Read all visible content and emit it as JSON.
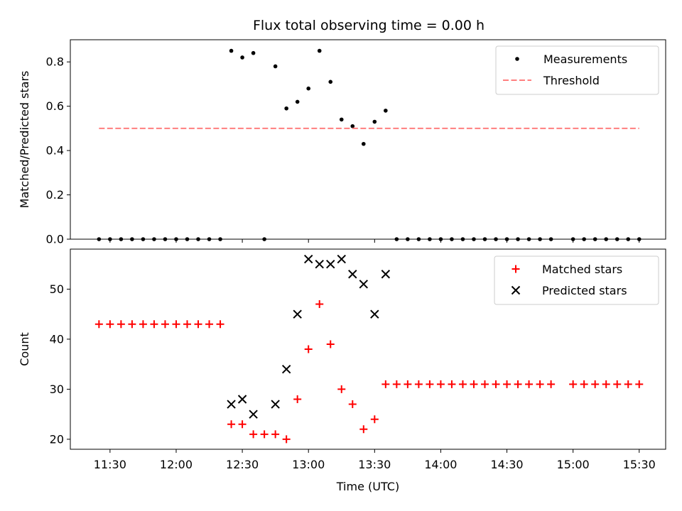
{
  "chart_data": [
    {
      "type": "scatter",
      "title": "Flux total observing time = 0.00 h",
      "xlabel": "",
      "ylabel": "Matched/Predicted stars",
      "ylim": [
        0,
        0.9
      ],
      "xlim": [
        "11:12",
        "15:42"
      ],
      "x_unit": "time (UTC)",
      "y_ticks": [
        0.0,
        0.2,
        0.4,
        0.6,
        0.8
      ],
      "y_tick_labels": [
        "0.0",
        "0.2",
        "0.4",
        "0.6",
        "0.8"
      ],
      "x_tick_labels_shown": false,
      "grid": false,
      "legend_position": "top-right",
      "series": [
        {
          "name": "Measurements",
          "marker": "dot",
          "color": "#000000",
          "points": [
            [
              "11:25",
              0.0
            ],
            [
              "11:30",
              0.0
            ],
            [
              "11:35",
              0.0
            ],
            [
              "11:40",
              0.0
            ],
            [
              "11:45",
              0.0
            ],
            [
              "11:50",
              0.0
            ],
            [
              "11:55",
              0.0
            ],
            [
              "12:00",
              0.0
            ],
            [
              "12:05",
              0.0
            ],
            [
              "12:10",
              0.0
            ],
            [
              "12:15",
              0.0
            ],
            [
              "12:20",
              0.0
            ],
            [
              "12:25",
              0.85
            ],
            [
              "12:30",
              0.82
            ],
            [
              "12:35",
              0.84
            ],
            [
              "12:40",
              0.0
            ],
            [
              "12:45",
              0.78
            ],
            [
              "12:50",
              0.59
            ],
            [
              "12:55",
              0.62
            ],
            [
              "13:00",
              0.68
            ],
            [
              "13:05",
              0.85
            ],
            [
              "13:10",
              0.71
            ],
            [
              "13:15",
              0.54
            ],
            [
              "13:20",
              0.51
            ],
            [
              "13:25",
              0.43
            ],
            [
              "13:30",
              0.53
            ],
            [
              "13:35",
              0.58
            ],
            [
              "13:40",
              0.0
            ],
            [
              "13:45",
              0.0
            ],
            [
              "13:50",
              0.0
            ],
            [
              "13:55",
              0.0
            ],
            [
              "14:00",
              0.0
            ],
            [
              "14:05",
              0.0
            ],
            [
              "14:10",
              0.0
            ],
            [
              "14:15",
              0.0
            ],
            [
              "14:20",
              0.0
            ],
            [
              "14:25",
              0.0
            ],
            [
              "14:30",
              0.0
            ],
            [
              "14:35",
              0.0
            ],
            [
              "14:40",
              0.0
            ],
            [
              "14:45",
              0.0
            ],
            [
              "14:50",
              0.0
            ],
            [
              "15:00",
              0.0
            ],
            [
              "15:05",
              0.0
            ],
            [
              "15:10",
              0.0
            ],
            [
              "15:15",
              0.0
            ],
            [
              "15:20",
              0.0
            ],
            [
              "15:25",
              0.0
            ],
            [
              "15:30",
              0.0
            ]
          ]
        },
        {
          "name": "Threshold",
          "style": "dashed-line",
          "color": "#ff7f7f",
          "points": [
            [
              "11:25",
              0.5
            ],
            [
              "15:30",
              0.5
            ]
          ]
        }
      ]
    },
    {
      "type": "scatter",
      "title": "",
      "xlabel": "Time (UTC)",
      "ylabel": "Count",
      "ylim": [
        18,
        58
      ],
      "xlim": [
        "11:12",
        "15:42"
      ],
      "x_unit": "time (UTC)",
      "y_ticks": [
        20,
        30,
        40,
        50
      ],
      "y_tick_labels": [
        "20",
        "30",
        "40",
        "50"
      ],
      "x_ticks": [
        "11:30",
        "12:00",
        "12:30",
        "13:00",
        "13:30",
        "14:00",
        "14:30",
        "15:00",
        "15:30"
      ],
      "x_tick_labels": [
        "11:30",
        "12:00",
        "12:30",
        "13:00",
        "13:30",
        "14:00",
        "14:30",
        "15:00",
        "15:30"
      ],
      "grid": false,
      "legend_position": "top-right",
      "series": [
        {
          "name": "Matched stars",
          "marker": "plus",
          "color": "#ff0000",
          "points": [
            [
              "11:25",
              43
            ],
            [
              "11:30",
              43
            ],
            [
              "11:35",
              43
            ],
            [
              "11:40",
              43
            ],
            [
              "11:45",
              43
            ],
            [
              "11:50",
              43
            ],
            [
              "11:55",
              43
            ],
            [
              "12:00",
              43
            ],
            [
              "12:05",
              43
            ],
            [
              "12:10",
              43
            ],
            [
              "12:15",
              43
            ],
            [
              "12:20",
              43
            ],
            [
              "12:25",
              23
            ],
            [
              "12:30",
              23
            ],
            [
              "12:35",
              21
            ],
            [
              "12:40",
              21
            ],
            [
              "12:45",
              21
            ],
            [
              "12:50",
              20
            ],
            [
              "12:55",
              28
            ],
            [
              "13:00",
              38
            ],
            [
              "13:05",
              47
            ],
            [
              "13:10",
              39
            ],
            [
              "13:15",
              30
            ],
            [
              "13:20",
              27
            ],
            [
              "13:25",
              22
            ],
            [
              "13:30",
              24
            ],
            [
              "13:35",
              31
            ],
            [
              "13:40",
              31
            ],
            [
              "13:45",
              31
            ],
            [
              "13:50",
              31
            ],
            [
              "13:55",
              31
            ],
            [
              "14:00",
              31
            ],
            [
              "14:05",
              31
            ],
            [
              "14:10",
              31
            ],
            [
              "14:15",
              31
            ],
            [
              "14:20",
              31
            ],
            [
              "14:25",
              31
            ],
            [
              "14:30",
              31
            ],
            [
              "14:35",
              31
            ],
            [
              "14:40",
              31
            ],
            [
              "14:45",
              31
            ],
            [
              "14:50",
              31
            ],
            [
              "15:00",
              31
            ],
            [
              "15:05",
              31
            ],
            [
              "15:10",
              31
            ],
            [
              "15:15",
              31
            ],
            [
              "15:20",
              31
            ],
            [
              "15:25",
              31
            ],
            [
              "15:30",
              31
            ]
          ]
        },
        {
          "name": "Predicted stars",
          "marker": "x",
          "color": "#000000",
          "points": [
            [
              "12:25",
              27
            ],
            [
              "12:30",
              28
            ],
            [
              "12:35",
              25
            ],
            [
              "12:45",
              27
            ],
            [
              "12:50",
              34
            ],
            [
              "12:55",
              45
            ],
            [
              "13:00",
              56
            ],
            [
              "13:05",
              55
            ],
            [
              "13:10",
              55
            ],
            [
              "13:15",
              56
            ],
            [
              "13:20",
              53
            ],
            [
              "13:25",
              51
            ],
            [
              "13:30",
              45
            ],
            [
              "13:35",
              53
            ]
          ]
        }
      ]
    }
  ]
}
